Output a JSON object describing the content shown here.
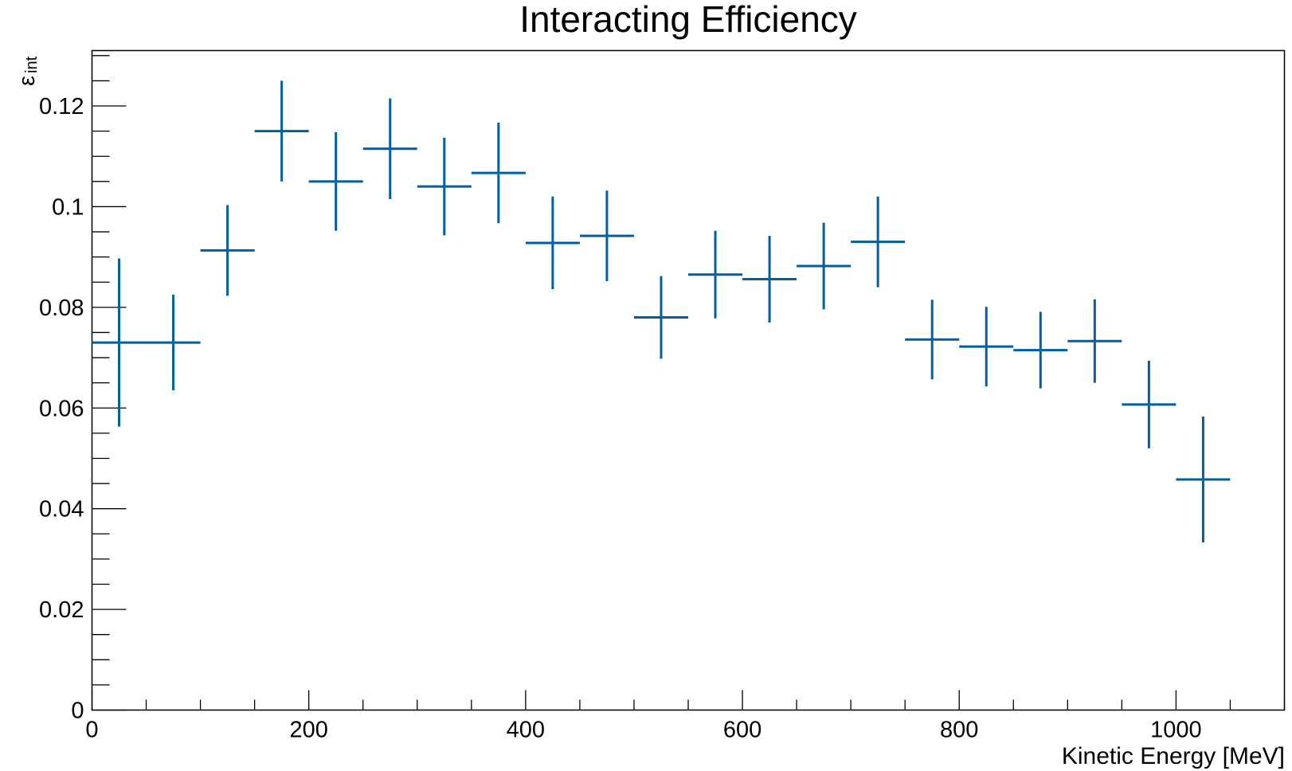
{
  "chart_data": {
    "type": "scatter",
    "title": "Interacting Efficiency",
    "xlabel": "Kinetic Energy [MeV]",
    "ylabel_main": "ε",
    "ylabel_sub": "int",
    "xlim": [
      0,
      1100
    ],
    "ylim": [
      0,
      0.131
    ],
    "xticks": [
      0,
      200,
      400,
      600,
      800,
      1000
    ],
    "xtick_labels": [
      "0",
      "200",
      "400",
      "600",
      "800",
      "1000"
    ],
    "yticks": [
      0,
      0.02,
      0.04,
      0.06,
      0.08,
      0.1,
      0.12
    ],
    "ytick_labels": [
      "0",
      "0.02",
      "0.04",
      "0.06",
      "0.08",
      "0.1",
      "0.12"
    ],
    "grid": false,
    "marker_color": "#005f9e",
    "series": [
      {
        "points": [
          {
            "x": 25,
            "xerr": 25,
            "y": 0.073,
            "yerr": 0.0167
          },
          {
            "x": 75,
            "xerr": 25,
            "y": 0.073,
            "yerr": 0.0095
          },
          {
            "x": 125,
            "xerr": 25,
            "y": 0.0913,
            "yerr": 0.009
          },
          {
            "x": 175,
            "xerr": 25,
            "y": 0.115,
            "yerr": 0.01
          },
          {
            "x": 225,
            "xerr": 25,
            "y": 0.105,
            "yerr": 0.0098
          },
          {
            "x": 275,
            "xerr": 25,
            "y": 0.1115,
            "yerr": 0.01
          },
          {
            "x": 325,
            "xerr": 25,
            "y": 0.104,
            "yerr": 0.0097
          },
          {
            "x": 375,
            "xerr": 25,
            "y": 0.1067,
            "yerr": 0.01
          },
          {
            "x": 425,
            "xerr": 25,
            "y": 0.0928,
            "yerr": 0.0092
          },
          {
            "x": 475,
            "xerr": 25,
            "y": 0.0942,
            "yerr": 0.009
          },
          {
            "x": 525,
            "xerr": 25,
            "y": 0.078,
            "yerr": 0.0082
          },
          {
            "x": 575,
            "xerr": 25,
            "y": 0.0865,
            "yerr": 0.0087
          },
          {
            "x": 625,
            "xerr": 25,
            "y": 0.0856,
            "yerr": 0.0086
          },
          {
            "x": 675,
            "xerr": 25,
            "y": 0.0882,
            "yerr": 0.0086
          },
          {
            "x": 725,
            "xerr": 25,
            "y": 0.093,
            "yerr": 0.009
          },
          {
            "x": 775,
            "xerr": 25,
            "y": 0.0736,
            "yerr": 0.0079
          },
          {
            "x": 825,
            "xerr": 25,
            "y": 0.0722,
            "yerr": 0.0079
          },
          {
            "x": 875,
            "xerr": 25,
            "y": 0.0715,
            "yerr": 0.0076
          },
          {
            "x": 925,
            "xerr": 25,
            "y": 0.0733,
            "yerr": 0.0083
          },
          {
            "x": 975,
            "xerr": 25,
            "y": 0.0607,
            "yerr": 0.0087
          },
          {
            "x": 1025,
            "xerr": 25,
            "y": 0.0458,
            "yerr": 0.0125
          }
        ]
      }
    ]
  }
}
